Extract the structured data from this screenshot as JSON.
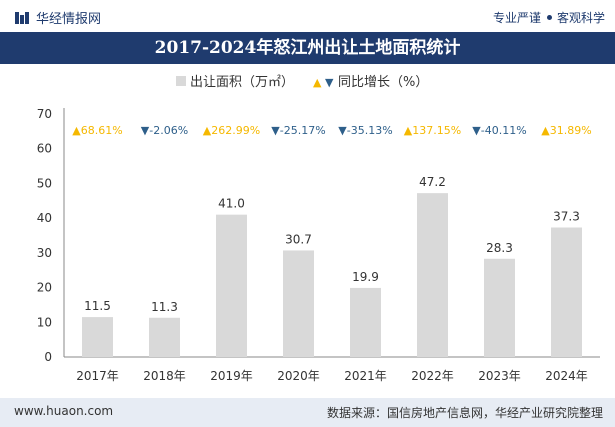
{
  "header": {
    "site_name": "华经情报网",
    "slogan_left": "专业严谨",
    "slogan_right": "客观科学"
  },
  "title": "2017-2024年怒江州出让土地面积统计",
  "footer": {
    "url": "www.huaon.com",
    "source": "数据来源：国信房地产信息网，华经产业研究院整理"
  },
  "colors": {
    "brand": "#1f3b6e",
    "bar": "#d9d9d9",
    "up": "#f5b800",
    "down": "#2e5f8a"
  },
  "chart_data": {
    "type": "bar",
    "categories": [
      "2017年",
      "2018年",
      "2019年",
      "2020年",
      "2021年",
      "2022年",
      "2023年",
      "2024年"
    ],
    "series": [
      {
        "name": "出让面积（万㎡）",
        "values": [
          11.5,
          11.3,
          41.0,
          30.7,
          19.9,
          47.2,
          28.3,
          37.3
        ]
      }
    ],
    "value_labels": [
      "11.5",
      "11.3",
      "41.0",
      "30.7",
      "19.9",
      "47.2",
      "28.3",
      "37.3"
    ],
    "yoy_series_name": "同比增长（%）",
    "yoy": [
      {
        "dir": "up",
        "text": "68.61%"
      },
      {
        "dir": "down",
        "text": "-2.06%"
      },
      {
        "dir": "up",
        "text": "262.99%"
      },
      {
        "dir": "down",
        "text": "-25.17%"
      },
      {
        "dir": "down",
        "text": "-35.13%"
      },
      {
        "dir": "up",
        "text": "137.15%"
      },
      {
        "dir": "down",
        "text": "-40.11%"
      },
      {
        "dir": "up",
        "text": "31.89%"
      }
    ],
    "ylim": [
      0,
      70
    ],
    "yticks": [
      "0",
      "10",
      "20",
      "30",
      "40",
      "50",
      "60",
      "70"
    ],
    "legend_position": "top-center",
    "grid": false
  }
}
